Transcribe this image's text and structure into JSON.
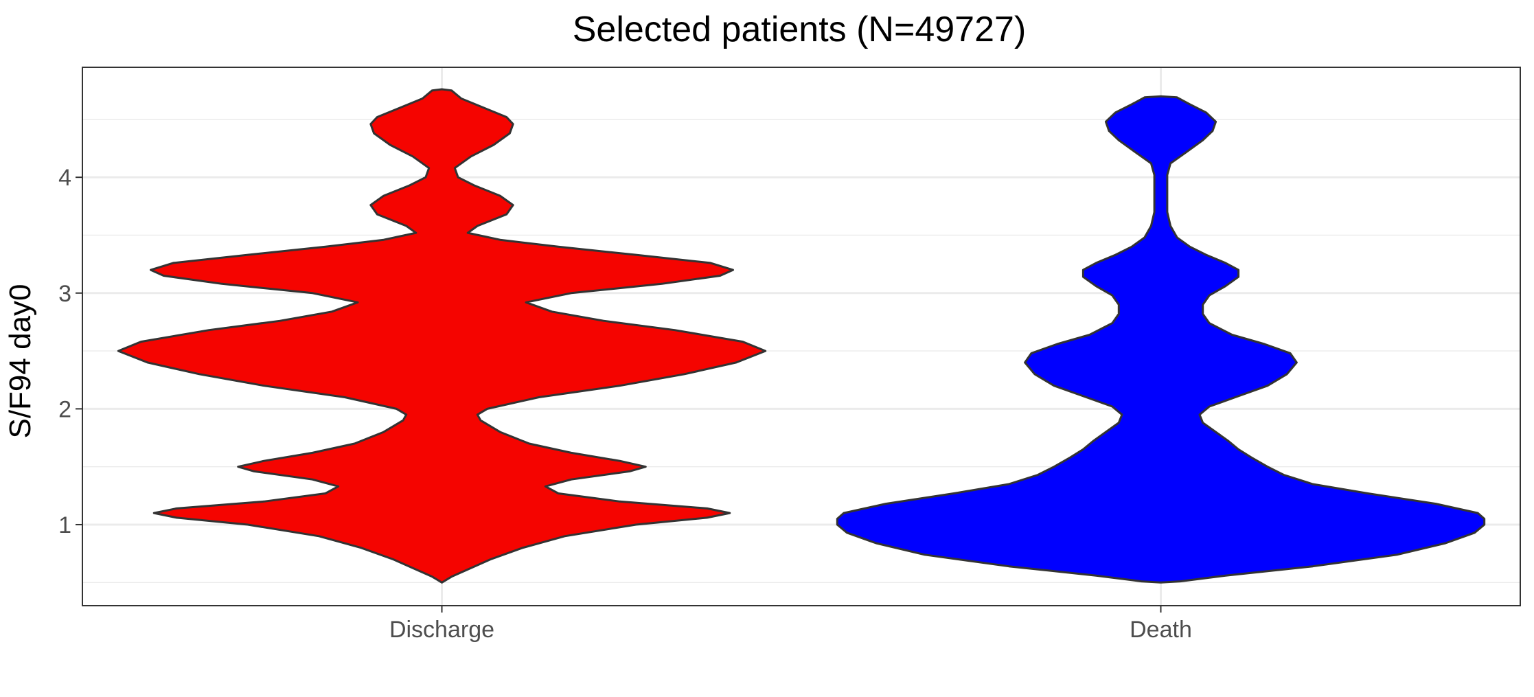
{
  "chart_data": {
    "type": "violin",
    "title": "Selected patients (N=49727)",
    "xlabel": "",
    "ylabel": "S/F94 day0",
    "categories": [
      "Discharge",
      "Death"
    ],
    "ylim": [
      0.3,
      4.95
    ],
    "yticks": [
      1,
      2,
      3,
      4
    ],
    "grid": true,
    "legend": "none",
    "series": [
      {
        "category": "Discharge",
        "fill": "#f50400",
        "density": [
          [
            0.5,
            0.0
          ],
          [
            0.55,
            0.03
          ],
          [
            0.6,
            0.07
          ],
          [
            0.7,
            0.15
          ],
          [
            0.8,
            0.25
          ],
          [
            0.9,
            0.38
          ],
          [
            1.0,
            0.6
          ],
          [
            1.06,
            0.82
          ],
          [
            1.1,
            0.89
          ],
          [
            1.14,
            0.82
          ],
          [
            1.2,
            0.55
          ],
          [
            1.27,
            0.36
          ],
          [
            1.33,
            0.32
          ],
          [
            1.39,
            0.4
          ],
          [
            1.46,
            0.58
          ],
          [
            1.5,
            0.63
          ],
          [
            1.55,
            0.55
          ],
          [
            1.62,
            0.4
          ],
          [
            1.7,
            0.27
          ],
          [
            1.8,
            0.18
          ],
          [
            1.9,
            0.12
          ],
          [
            1.95,
            0.11
          ],
          [
            2.0,
            0.14
          ],
          [
            2.1,
            0.3
          ],
          [
            2.2,
            0.55
          ],
          [
            2.3,
            0.75
          ],
          [
            2.4,
            0.91
          ],
          [
            2.5,
            1.0
          ],
          [
            2.58,
            0.93
          ],
          [
            2.68,
            0.72
          ],
          [
            2.76,
            0.5
          ],
          [
            2.84,
            0.34
          ],
          [
            2.92,
            0.26
          ],
          [
            3.0,
            0.4
          ],
          [
            3.08,
            0.68
          ],
          [
            3.15,
            0.86
          ],
          [
            3.2,
            0.9
          ],
          [
            3.26,
            0.83
          ],
          [
            3.33,
            0.6
          ],
          [
            3.4,
            0.36
          ],
          [
            3.46,
            0.18
          ],
          [
            3.52,
            0.08
          ],
          [
            3.58,
            0.11
          ],
          [
            3.68,
            0.2
          ],
          [
            3.76,
            0.22
          ],
          [
            3.84,
            0.18
          ],
          [
            3.93,
            0.1
          ],
          [
            4.0,
            0.05
          ],
          [
            4.08,
            0.04
          ],
          [
            4.18,
            0.09
          ],
          [
            4.28,
            0.16
          ],
          [
            4.38,
            0.21
          ],
          [
            4.46,
            0.22
          ],
          [
            4.52,
            0.2
          ],
          [
            4.6,
            0.13
          ],
          [
            4.68,
            0.06
          ],
          [
            4.75,
            0.03
          ],
          [
            4.76,
            0.0
          ]
        ]
      },
      {
        "category": "Death",
        "fill": "#0000ff",
        "density": [
          [
            0.5,
            0.0
          ],
          [
            0.51,
            0.06
          ],
          [
            0.56,
            0.2
          ],
          [
            0.64,
            0.47
          ],
          [
            0.74,
            0.73
          ],
          [
            0.84,
            0.88
          ],
          [
            0.93,
            0.97
          ],
          [
            1.0,
            1.0
          ],
          [
            1.05,
            1.0
          ],
          [
            1.1,
            0.98
          ],
          [
            1.18,
            0.85
          ],
          [
            1.27,
            0.64
          ],
          [
            1.35,
            0.47
          ],
          [
            1.43,
            0.38
          ],
          [
            1.5,
            0.33
          ],
          [
            1.58,
            0.28
          ],
          [
            1.65,
            0.24
          ],
          [
            1.72,
            0.21
          ],
          [
            1.8,
            0.17
          ],
          [
            1.88,
            0.13
          ],
          [
            1.95,
            0.12
          ],
          [
            2.02,
            0.15
          ],
          [
            2.1,
            0.23
          ],
          [
            2.2,
            0.33
          ],
          [
            2.3,
            0.39
          ],
          [
            2.4,
            0.42
          ],
          [
            2.48,
            0.4
          ],
          [
            2.56,
            0.32
          ],
          [
            2.64,
            0.22
          ],
          [
            2.74,
            0.15
          ],
          [
            2.82,
            0.13
          ],
          [
            2.9,
            0.13
          ],
          [
            2.98,
            0.15
          ],
          [
            3.06,
            0.2
          ],
          [
            3.14,
            0.24
          ],
          [
            3.2,
            0.24
          ],
          [
            3.26,
            0.2
          ],
          [
            3.33,
            0.14
          ],
          [
            3.4,
            0.09
          ],
          [
            3.48,
            0.05
          ],
          [
            3.58,
            0.03
          ],
          [
            3.7,
            0.02
          ],
          [
            3.82,
            0.02
          ],
          [
            3.93,
            0.02
          ],
          [
            4.02,
            0.02
          ],
          [
            4.12,
            0.03
          ],
          [
            4.22,
            0.08
          ],
          [
            4.32,
            0.13
          ],
          [
            4.4,
            0.16
          ],
          [
            4.48,
            0.17
          ],
          [
            4.56,
            0.14
          ],
          [
            4.63,
            0.09
          ],
          [
            4.69,
            0.05
          ],
          [
            4.7,
            0.0
          ]
        ]
      }
    ]
  }
}
